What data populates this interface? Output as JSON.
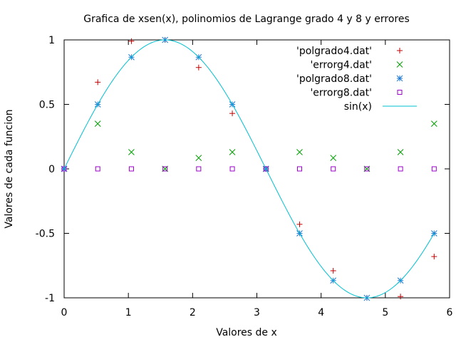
{
  "chart_data": {
    "type": "scatter",
    "title": "Grafica de xsen(x), polinomios de Lagrange grado 4 y 8 y errores",
    "xlabel": "Valores de x",
    "ylabel": "Valores de cada funcion",
    "xlim": [
      0,
      6
    ],
    "ylim": [
      -1,
      1
    ],
    "xticks": [
      0,
      1,
      2,
      3,
      4,
      5,
      6
    ],
    "yticks": [
      -1,
      -0.5,
      0,
      0.5,
      1
    ],
    "xtick_labels": [
      "0",
      "1",
      "2",
      "3",
      "4",
      "5",
      "6"
    ],
    "ytick_labels": [
      "-1",
      "-0.5",
      "0",
      "0.5",
      "1"
    ],
    "grid": false,
    "legend_position": "top-right",
    "series": [
      {
        "name": "'polgrado4.dat'",
        "marker": "plus",
        "color": "#c00000",
        "points": [
          [
            0,
            0
          ],
          [
            0.5236,
            0.672
          ],
          [
            1.0472,
            0.99
          ],
          [
            1.5708,
            1.0
          ],
          [
            2.0944,
            0.786
          ],
          [
            2.618,
            0.43
          ],
          [
            3.1416,
            0
          ],
          [
            3.6652,
            -0.43
          ],
          [
            4.1888,
            -0.79
          ],
          [
            4.7124,
            -1.0
          ],
          [
            5.236,
            -0.99
          ],
          [
            5.7596,
            -0.68
          ]
        ]
      },
      {
        "name": "'errorg4.dat'",
        "marker": "x",
        "color": "#00a000",
        "points": [
          [
            0,
            0
          ],
          [
            0.5236,
            0.35
          ],
          [
            1.0472,
            0.13
          ],
          [
            1.5708,
            0
          ],
          [
            2.0944,
            0.085
          ],
          [
            2.618,
            0.13
          ],
          [
            3.1416,
            0
          ],
          [
            3.6652,
            0.13
          ],
          [
            4.1888,
            0.085
          ],
          [
            4.7124,
            0
          ],
          [
            5.236,
            0.13
          ],
          [
            5.7596,
            0.35
          ]
        ]
      },
      {
        "name": "'polgrado8.dat'",
        "marker": "star",
        "color": "#1d7ad4",
        "points": [
          [
            0,
            0
          ],
          [
            0.5236,
            0.5
          ],
          [
            1.0472,
            0.866
          ],
          [
            1.5708,
            1.0
          ],
          [
            2.0944,
            0.866
          ],
          [
            2.618,
            0.5
          ],
          [
            3.1416,
            0
          ],
          [
            3.6652,
            -0.5
          ],
          [
            4.1888,
            -0.866
          ],
          [
            4.7124,
            -1.0
          ],
          [
            5.236,
            -0.866
          ],
          [
            5.7596,
            -0.5
          ]
        ]
      },
      {
        "name": "'errorg8.dat'",
        "marker": "square",
        "color": "#9b00c8",
        "points": [
          [
            0,
            0
          ],
          [
            0.5236,
            0
          ],
          [
            1.0472,
            0
          ],
          [
            1.5708,
            0
          ],
          [
            2.0944,
            0
          ],
          [
            2.618,
            0
          ],
          [
            3.1416,
            0
          ],
          [
            3.6652,
            0
          ],
          [
            4.1888,
            0
          ],
          [
            4.7124,
            0
          ],
          [
            5.236,
            0
          ],
          [
            5.7596,
            0
          ]
        ]
      },
      {
        "name": "sin(x)",
        "marker": "line",
        "color": "#00c0d0",
        "function": "sin",
        "domain": [
          0,
          5.7596
        ]
      }
    ]
  }
}
